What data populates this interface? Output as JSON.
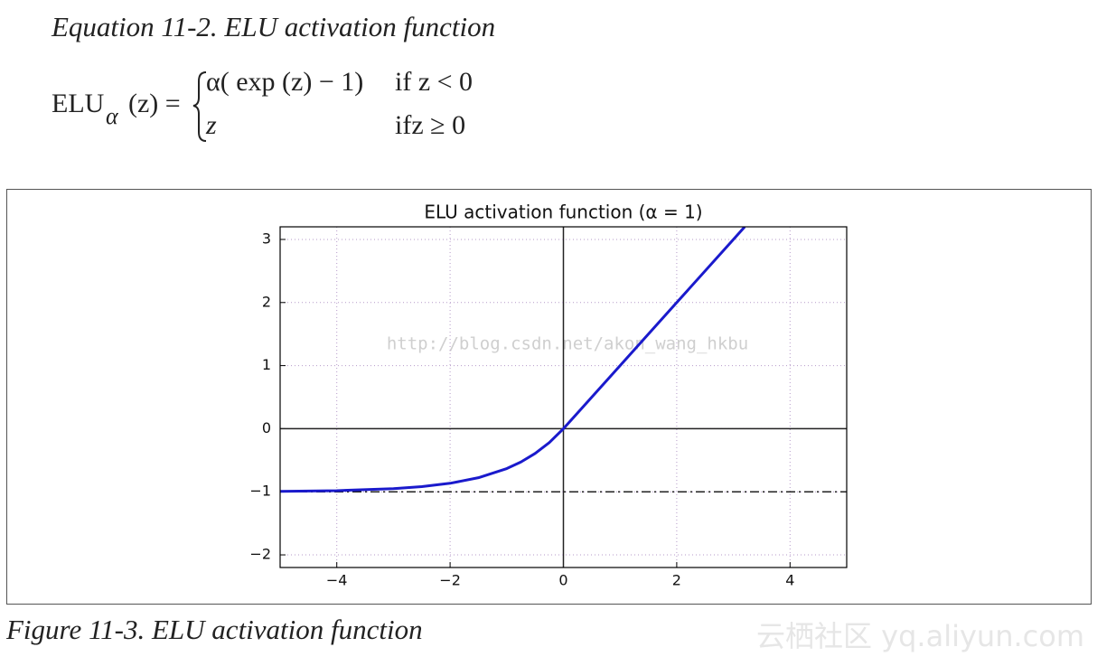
{
  "equation": {
    "label": "Equation 11-2. ELU activation function",
    "lhs": "ELU",
    "lhs_subscript": "α",
    "lhs_argument": "(z) =",
    "cases": [
      {
        "expression": "α( exp (z) − 1)",
        "condition": "if  z < 0"
      },
      {
        "expression": "z",
        "condition": "ifz ≥ 0"
      }
    ]
  },
  "chart_data": {
    "type": "line",
    "title": "ELU activation function (α = 1)",
    "x": [
      -5,
      -4,
      -3,
      -2.5,
      -2,
      -1.5,
      -1,
      -0.75,
      -0.5,
      -0.25,
      0,
      1,
      2,
      3,
      3.2
    ],
    "series": [
      {
        "color": "#1a1acc",
        "values": [
          -0.993,
          -0.982,
          -0.95,
          -0.918,
          -0.865,
          -0.777,
          -0.632,
          -0.528,
          -0.393,
          -0.221,
          0,
          1,
          2,
          3,
          3.2
        ]
      }
    ],
    "reference_line": {
      "y": -1,
      "style": "dashdot"
    },
    "xlim": [
      -5,
      5
    ],
    "ylim": [
      -2.2,
      3.2
    ],
    "xticks": [
      {
        "value": -4,
        "label": "−4"
      },
      {
        "value": -2,
        "label": "−2"
      },
      0,
      2,
      4
    ],
    "yticks": [
      {
        "value": -2,
        "label": "−2"
      },
      {
        "value": -1,
        "label": "−1"
      },
      0,
      1,
      2,
      3
    ],
    "grid": true,
    "watermark": "http://blog.csdn.net/akon_wang_hkbu"
  },
  "caption": "Figure 11-3. ELU activation function",
  "site_watermark": "云栖社区 yq.aliyun.com"
}
